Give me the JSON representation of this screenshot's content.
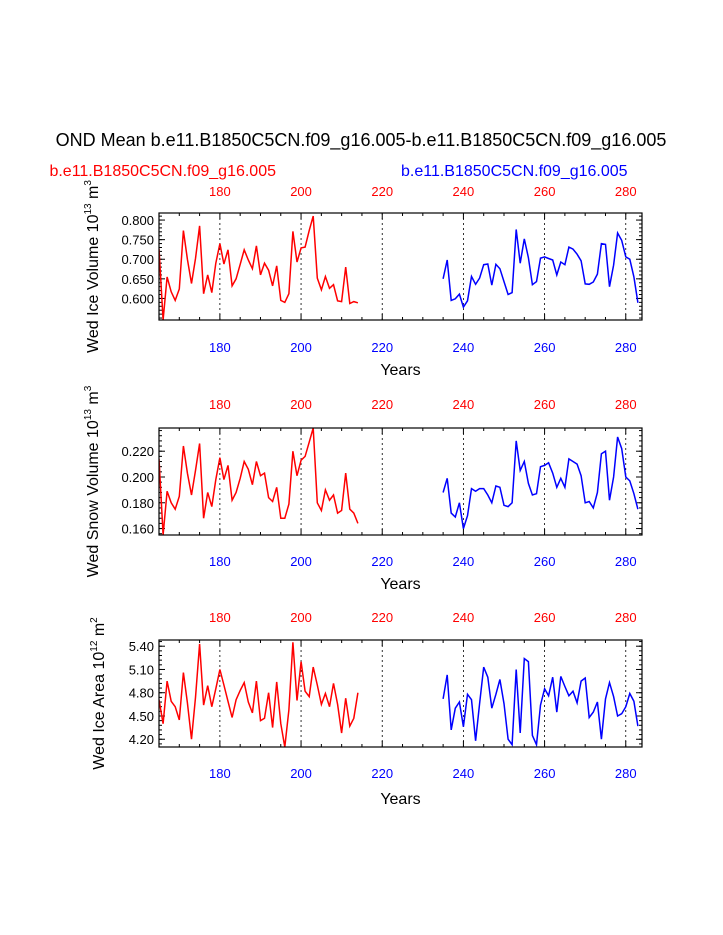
{
  "chart_data": {
    "type": "line",
    "title": "OND Mean b.e11.B1850C5CN.f09_g16.005-b.e11.B1850C5CN.f09_g16.005",
    "legend": [
      {
        "name": "b.e11.B1850C5CN.f09_g16.005",
        "color": "#ff0000"
      },
      {
        "name": "b.e11.B1850C5CN.f09_g16.005",
        "color": "#0000ff"
      }
    ],
    "xlabel": "Years",
    "xlim": [
      165,
      284
    ],
    "top_axis_ticks": [
      {
        "label": "180",
        "value": 180,
        "color": "#ff0000"
      },
      {
        "label": "200",
        "value": 200,
        "color": "#ff0000"
      },
      {
        "label": "220",
        "value": 220,
        "color": "#ff0000"
      },
      {
        "label": "240",
        "value": 240,
        "color": "#ff0000"
      },
      {
        "label": "260",
        "value": 260,
        "color": "#ff0000"
      },
      {
        "label": "280",
        "value": 280,
        "color": "#ff0000"
      }
    ],
    "bottom_axis_ticks": [
      {
        "label": "180",
        "value": 180,
        "color": "#0000ff"
      },
      {
        "label": "200",
        "value": 200,
        "color": "#0000ff"
      },
      {
        "label": "220",
        "value": 220,
        "color": "#0000ff"
      },
      {
        "label": "240",
        "value": 240,
        "color": "#0000ff"
      },
      {
        "label": "260",
        "value": 260,
        "color": "#0000ff"
      },
      {
        "label": "280",
        "value": 280,
        "color": "#0000ff"
      }
    ],
    "panels": [
      {
        "ylabel": "Wed Ice Volume 10",
        "ylabel_exp": "13",
        "ylabel_unit": "m",
        "ylabel_unit_exp": "3",
        "ylim": [
          0.545,
          0.818
        ],
        "yticks": [
          "0.800",
          "0.750",
          "0.700",
          "0.650",
          "0.600"
        ],
        "ytick_values": [
          0.8,
          0.75,
          0.7,
          0.65,
          0.6
        ],
        "series": [
          {
            "name": "b.e11.B1850C5CN.f09_g16.005",
            "color": "#ff0000",
            "x_start": 165,
            "values": [
              0.727,
              0.545,
              0.655,
              0.617,
              0.595,
              0.624,
              0.773,
              0.7,
              0.638,
              0.702,
              0.785,
              0.612,
              0.66,
              0.615,
              0.69,
              0.74,
              0.688,
              0.724,
              0.632,
              0.65,
              0.687,
              0.724,
              0.698,
              0.676,
              0.734,
              0.66,
              0.69,
              0.672,
              0.632,
              0.683,
              0.595,
              0.59,
              0.612,
              0.771,
              0.693,
              0.729,
              0.731,
              0.773,
              0.81,
              0.652,
              0.622,
              0.656,
              0.626,
              0.635,
              0.594,
              0.592,
              0.68,
              0.587,
              0.592,
              0.589
            ]
          },
          {
            "name": "b.e11.B1850C5CN.f09_g16.005",
            "color": "#0000ff",
            "x_start": 235,
            "values": [
              0.65,
              0.698,
              0.595,
              0.599,
              0.611,
              0.578,
              0.594,
              0.656,
              0.636,
              0.652,
              0.686,
              0.688,
              0.634,
              0.687,
              0.676,
              0.643,
              0.61,
              0.615,
              0.776,
              0.69,
              0.752,
              0.704,
              0.635,
              0.643,
              0.703,
              0.706,
              0.702,
              0.698,
              0.66,
              0.693,
              0.686,
              0.731,
              0.726,
              0.713,
              0.696,
              0.637,
              0.636,
              0.642,
              0.662,
              0.74,
              0.738,
              0.63,
              0.685,
              0.767,
              0.748,
              0.706,
              0.7,
              0.655,
              0.589
            ]
          }
        ]
      },
      {
        "ylabel": "Wed Snow Volume 10",
        "ylabel_exp": "13",
        "ylabel_unit": "m",
        "ylabel_unit_exp": "3",
        "ylim": [
          0.155,
          0.238
        ],
        "yticks": [
          "0.220",
          "0.200",
          "0.180",
          "0.160"
        ],
        "ytick_values": [
          0.22,
          0.2,
          0.18,
          0.16
        ],
        "series": [
          {
            "name": "b.e11.B1850C5CN.f09_g16.005",
            "color": "#ff0000",
            "x_start": 165,
            "values": [
              0.214,
              0.155,
              0.189,
              0.18,
              0.175,
              0.185,
              0.224,
              0.203,
              0.186,
              0.205,
              0.226,
              0.168,
              0.188,
              0.177,
              0.198,
              0.215,
              0.198,
              0.209,
              0.182,
              0.188,
              0.199,
              0.212,
              0.206,
              0.194,
              0.212,
              0.201,
              0.203,
              0.184,
              0.181,
              0.192,
              0.168,
              0.168,
              0.179,
              0.22,
              0.201,
              0.213,
              0.216,
              0.227,
              0.238,
              0.18,
              0.174,
              0.19,
              0.182,
              0.186,
              0.172,
              0.174,
              0.203,
              0.175,
              0.172,
              0.164
            ]
          },
          {
            "name": "b.e11.B1850C5CN.f09_g16.005",
            "color": "#0000ff",
            "x_start": 235,
            "values": [
              0.188,
              0.199,
              0.172,
              0.169,
              0.18,
              0.16,
              0.17,
              0.191,
              0.189,
              0.191,
              0.191,
              0.186,
              0.18,
              0.193,
              0.192,
              0.178,
              0.177,
              0.18,
              0.228,
              0.205,
              0.212,
              0.195,
              0.186,
              0.187,
              0.208,
              0.209,
              0.211,
              0.203,
              0.192,
              0.199,
              0.192,
              0.214,
              0.212,
              0.21,
              0.201,
              0.18,
              0.181,
              0.176,
              0.188,
              0.218,
              0.22,
              0.182,
              0.2,
              0.231,
              0.222,
              0.2,
              0.197,
              0.187,
              0.175
            ]
          }
        ]
      },
      {
        "ylabel": "Wed Ice Area 10",
        "ylabel_exp": "12",
        "ylabel_unit": "m",
        "ylabel_unit_exp": "2",
        "ylim": [
          4.1,
          5.48
        ],
        "yticks": [
          "5.40",
          "5.10",
          "4.80",
          "4.50",
          "4.20"
        ],
        "ytick_values": [
          5.4,
          5.1,
          4.8,
          4.5,
          4.2
        ],
        "series": [
          {
            "name": "b.e11.B1850C5CN.f09_g16.005",
            "color": "#ff0000",
            "x_start": 165,
            "values": [
              4.71,
              4.4,
              4.95,
              4.69,
              4.62,
              4.45,
              5.06,
              4.67,
              4.2,
              4.74,
              5.43,
              4.64,
              4.89,
              4.62,
              4.85,
              5.1,
              4.9,
              4.69,
              4.48,
              4.71,
              4.83,
              4.93,
              4.68,
              4.54,
              4.95,
              4.44,
              4.47,
              4.8,
              4.35,
              4.94,
              4.4,
              4.1,
              4.58,
              5.45,
              4.7,
              5.2,
              4.82,
              4.75,
              5.13,
              4.9,
              4.65,
              4.79,
              4.62,
              4.92,
              4.65,
              4.28,
              4.73,
              4.37,
              4.47,
              4.8
            ]
          },
          {
            "name": "b.e11.B1850C5CN.f09_g16.005",
            "color": "#0000ff",
            "x_start": 235,
            "values": [
              4.72,
              5.03,
              4.32,
              4.6,
              4.68,
              4.36,
              4.78,
              4.71,
              4.18,
              4.66,
              5.13,
              5.0,
              4.6,
              4.78,
              4.97,
              4.66,
              4.2,
              4.13,
              5.1,
              4.28,
              5.24,
              5.2,
              4.25,
              4.13,
              4.64,
              4.85,
              4.76,
              5.0,
              4.55,
              5.01,
              4.88,
              4.76,
              4.82,
              4.67,
              4.95,
              4.99,
              4.48,
              4.55,
              4.68,
              4.2,
              4.72,
              4.93,
              4.75,
              4.5,
              4.53,
              4.62,
              4.79,
              4.69,
              4.37
            ]
          }
        ]
      }
    ]
  }
}
